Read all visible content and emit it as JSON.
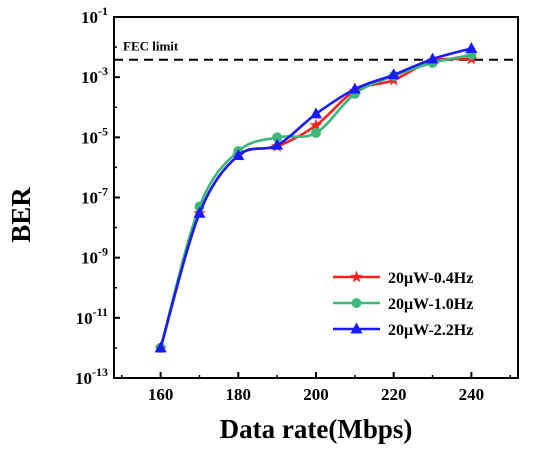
{
  "chart_data": {
    "type": "line",
    "xlabel": "Data rate(Mbps)",
    "ylabel": "BER",
    "xlim": [
      148,
      252
    ],
    "ylim_exponent": [
      -13,
      -1
    ],
    "y_scale": "log",
    "x_ticks": [
      160,
      180,
      200,
      220,
      240
    ],
    "x_tick_labels": [
      "160",
      "180",
      "200",
      "220",
      "240"
    ],
    "y_ticks": [
      -13,
      -11,
      -9,
      -7,
      -5,
      -3,
      -1
    ],
    "y_tick_labels": [
      {
        "base": "10",
        "exp": "-13"
      },
      {
        "base": "10",
        "exp": "-11"
      },
      {
        "base": "10",
        "exp": "-9"
      },
      {
        "base": "10",
        "exp": "-7"
      },
      {
        "base": "10",
        "exp": "-5"
      },
      {
        "base": "10",
        "exp": "-3"
      },
      {
        "base": "10",
        "exp": "-1"
      }
    ],
    "fec_limit": {
      "label": "FEC limit",
      "value": 0.0038
    },
    "legend_position": "lower-right",
    "series": [
      {
        "name": "20μW-0.4Hz",
        "color": "#ff2020",
        "marker": "star",
        "x": [
          160,
          170,
          180,
          190,
          200,
          210,
          220,
          230,
          240
        ],
        "y": [
          1e-12,
          3e-08,
          2.5e-06,
          5e-06,
          2.5e-05,
          0.00035,
          0.0008,
          0.0035,
          0.004
        ]
      },
      {
        "name": "20μW-1.0Hz",
        "color": "#3cb878",
        "marker": "circle",
        "x": [
          160,
          170,
          180,
          190,
          200,
          210,
          220,
          230,
          240
        ],
        "y": [
          1e-12,
          5e-08,
          3.5e-06,
          1e-05,
          1.4e-05,
          0.00028,
          0.0011,
          0.003,
          0.0055
        ]
      },
      {
        "name": "20μW-2.2Hz",
        "color": "#1a1aff",
        "marker": "triangle",
        "x": [
          160,
          170,
          180,
          190,
          200,
          210,
          220,
          230,
          240
        ],
        "y": [
          1e-12,
          3e-08,
          2.5e-06,
          5.5e-06,
          6e-05,
          0.0004,
          0.0012,
          0.004,
          0.009
        ]
      }
    ]
  }
}
